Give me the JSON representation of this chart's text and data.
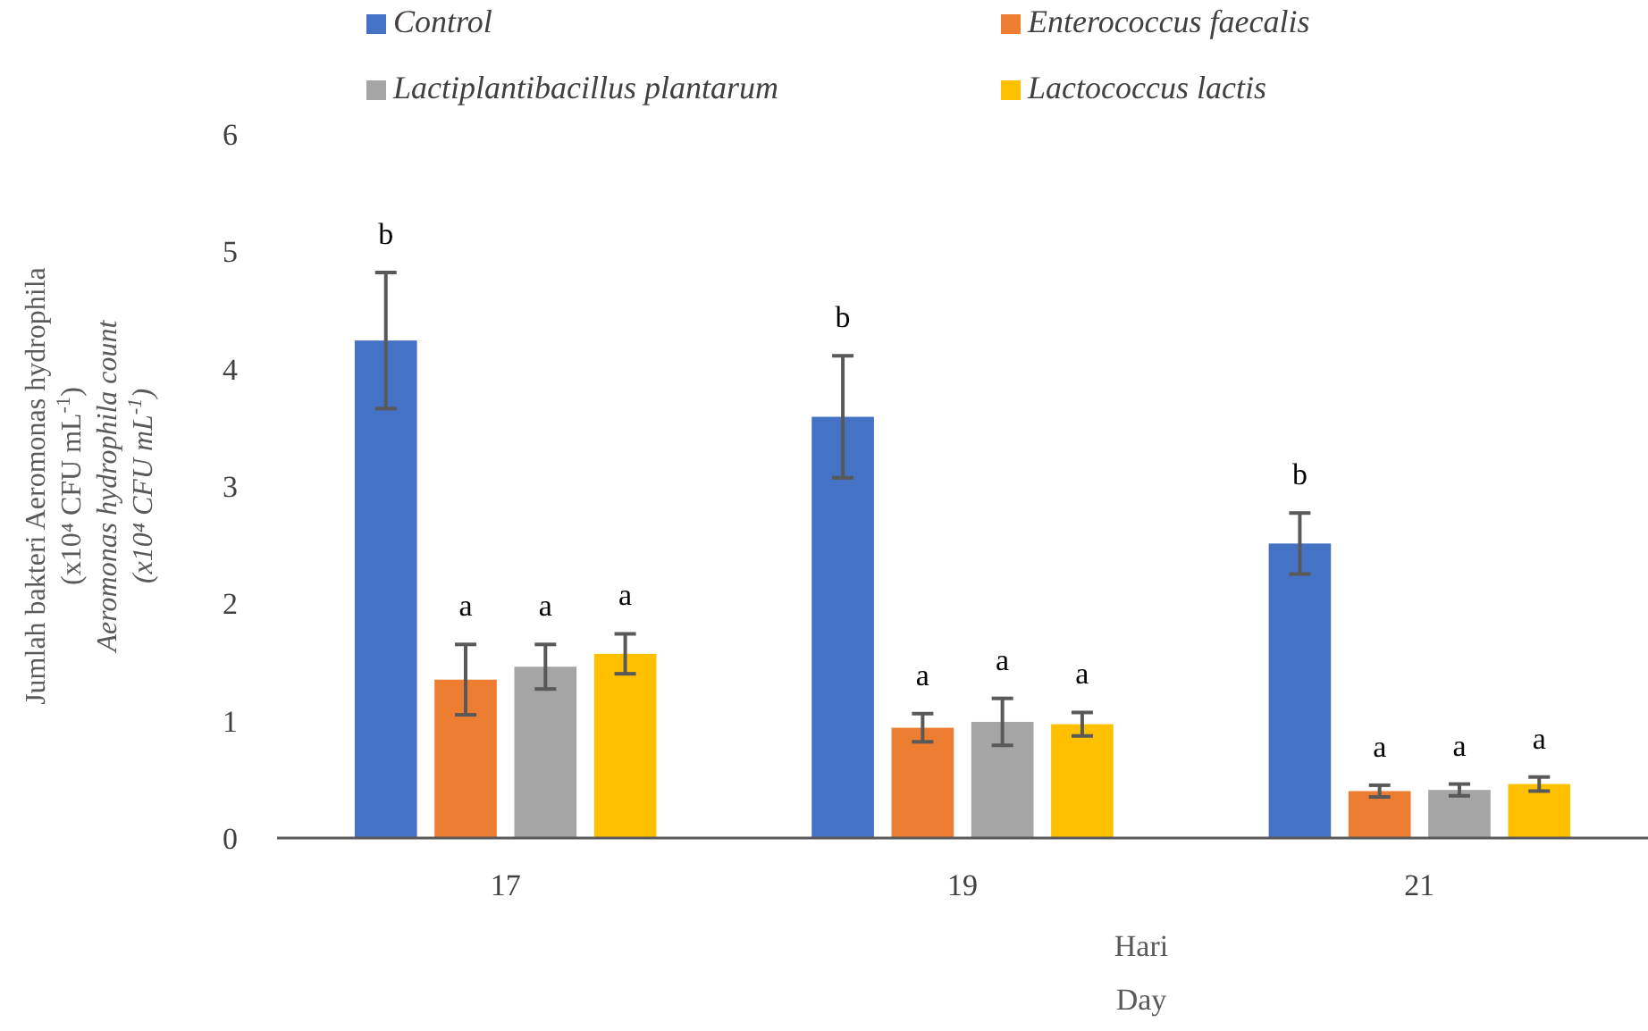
{
  "chart_data": {
    "type": "bar",
    "xlabel": "Hari\nDay",
    "ylabel": "Jumlah bakteri Aeromonas hydrophila\n(x10⁴ CFU mL$^{-1}$)\nAeromonas hydrophila count\n(x10⁴ CFU mL$^{-1}$)",
    "categories": [
      "17",
      "19",
      "21"
    ],
    "series": [
      {
        "name": "Control",
        "color": "#4472c4",
        "values": [
          4.24,
          3.59,
          2.51
        ],
        "errors": [
          0.58,
          0.52,
          0.26
        ]
      },
      {
        "name": "Enterococcus faecalis",
        "color": "#ed7d31",
        "values": [
          1.35,
          0.94,
          0.4
        ],
        "errors": [
          0.3,
          0.12,
          0.05
        ]
      },
      {
        "name": "Lactiplantibacillus plantarum",
        "color": "#a5a5a5",
        "values": [
          1.46,
          0.99,
          0.41
        ],
        "errors": [
          0.19,
          0.2,
          0.05
        ]
      },
      {
        "name": "Lactococcus lactis",
        "color": "#ffc000",
        "values": [
          1.57,
          0.97,
          0.46
        ],
        "errors": [
          0.17,
          0.1,
          0.06
        ]
      }
    ],
    "ylim": [
      0,
      6
    ],
    "yticks": [
      0,
      1,
      2,
      3,
      4,
      5,
      6
    ],
    "grid": false,
    "legend": "top",
    "annotations": [
      "b",
      "a",
      "a",
      "a",
      "b",
      "a",
      "a",
      "a",
      "b",
      "a",
      "a",
      "a"
    ]
  }
}
